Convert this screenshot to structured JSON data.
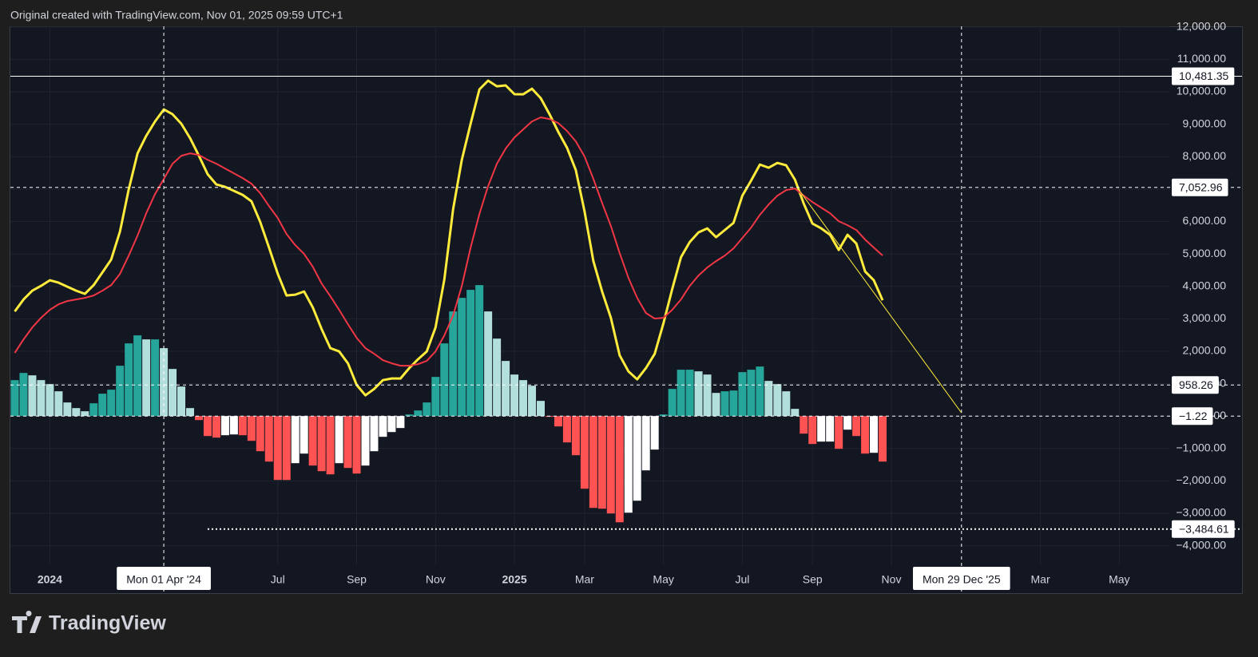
{
  "header": {
    "text": "Original created with TradingView.com, Nov 01, 2025 09:59 UTC+1"
  },
  "footer": {
    "brand": "TradingView"
  },
  "chart_data": {
    "type": "macd",
    "categories": [
      null,
      null,
      null,
      null,
      "2024",
      null,
      null,
      null,
      null,
      null,
      null,
      null,
      null,
      null,
      null,
      null,
      null,
      null,
      null,
      null,
      null,
      null,
      null,
      null,
      null,
      null,
      null,
      null,
      null,
      null,
      "Jul",
      null,
      null,
      null,
      null,
      null,
      null,
      null,
      null,
      "Sep",
      null,
      null,
      null,
      null,
      null,
      null,
      null,
      null,
      "Nov",
      null,
      null,
      null,
      null,
      null,
      null,
      null,
      null,
      "2025",
      null,
      null,
      null,
      null,
      null,
      null,
      null,
      "Mar",
      null,
      null,
      null,
      null,
      null,
      null,
      null,
      null,
      "May",
      null,
      null,
      null,
      null,
      null,
      null,
      null,
      null,
      "Jul",
      null,
      null,
      null,
      null,
      null,
      null,
      null,
      "Sep",
      null,
      null,
      null,
      null,
      null,
      null,
      null,
      null,
      "Nov",
      null,
      null,
      null,
      null,
      null,
      null,
      null,
      null,
      null,
      null,
      null,
      null,
      null,
      null,
      null,
      null,
      "Mar",
      null,
      null,
      null,
      null,
      null,
      null,
      null,
      null,
      "May",
      null,
      null,
      null,
      null,
      null
    ],
    "series": [
      {
        "kind": "histogram",
        "colors": {
          "grow_above": "#26a69a",
          "fall_above": "#b2dfdb",
          "grow_below": "#ffffff",
          "fall_below": "#ff5252"
        },
        "values": [
          1108,
          1330,
          1256,
          1108,
          985,
          764,
          419,
          246,
          148,
          394,
          690,
          813,
          1552,
          2241,
          2488,
          2365,
          2365,
          2094,
          1453,
          911,
          246,
          -123,
          -616,
          -665,
          -591,
          -567,
          -591,
          -764,
          -1084,
          -1404,
          -1970,
          -1972,
          -1453,
          -1158,
          -1527,
          -1700,
          -1798,
          -1453,
          -1601,
          -1773,
          -1527,
          -1084,
          -640,
          -493,
          -369,
          49,
          172,
          419,
          1207,
          2241,
          3227,
          3645,
          3892,
          4039,
          3227,
          2389,
          1700,
          1281,
          1108,
          936,
          468,
          -20,
          -320,
          -813,
          -1207,
          -2241,
          -2833,
          -2857,
          -3005,
          -3276,
          -2980,
          -2611,
          -1675,
          -1034,
          49,
          837,
          1429,
          1430,
          1379,
          1281,
          714,
          764,
          788,
          1355,
          1429,
          1527,
          1084,
          985,
          764,
          222,
          -542,
          -862,
          -788,
          -787,
          -1010,
          -419,
          -616,
          -1158,
          -1133,
          -1404,
          null,
          null,
          null,
          null,
          null,
          null,
          null,
          null,
          null,
          null,
          null,
          null,
          null,
          null,
          null,
          null,
          null,
          null,
          null,
          null,
          null,
          null,
          null,
          null,
          null,
          null,
          null,
          null,
          null,
          null,
          null,
          null
        ]
      },
      {
        "kind": "line",
        "color": "#ffeb3b",
        "values": [
          3227,
          3596,
          3867,
          4015,
          4187,
          4113,
          3990,
          3867,
          3768,
          4039,
          4433,
          4828,
          5690,
          6995,
          8103,
          8645,
          9088,
          9458,
          9310,
          9015,
          8571,
          8029,
          7463,
          7143,
          7069,
          6946,
          6823,
          6626,
          5985,
          5197,
          4384,
          3719,
          3744,
          3842,
          3350,
          2685,
          2094,
          1995,
          1626,
          961,
          640,
          837,
          1108,
          1158,
          1160,
          1478,
          1749,
          1995,
          2734,
          4212,
          6379,
          7906,
          9015,
          10074,
          10345,
          10172,
          10197,
          9926,
          9925,
          10098,
          9803,
          9310,
          8768,
          8276,
          7586,
          6305,
          4778,
          3842,
          3030,
          1872,
          1379,
          1133,
          1478,
          1921,
          2857,
          3916,
          4901,
          5369,
          5665,
          5788,
          5517,
          5739,
          5960,
          6798,
          7266,
          7759,
          7660,
          7808,
          7734,
          7290,
          6552,
          5936,
          5788,
          5591,
          5123,
          5591,
          5320,
          4458,
          4187,
          3571,
          null,
          null,
          null,
          null,
          null,
          null,
          null,
          null,
          null,
          null,
          null,
          null,
          null,
          null,
          null,
          null,
          null,
          null,
          null,
          null,
          null,
          null,
          null,
          null,
          null,
          null,
          null,
          null,
          null,
          null,
          null,
          null
        ]
      },
      {
        "kind": "line",
        "color": "#f23645",
        "values": [
          1946,
          2365,
          2734,
          3030,
          3276,
          3448,
          3547,
          3596,
          3645,
          3719,
          3867,
          4039,
          4384,
          4951,
          5567,
          6256,
          6847,
          7315,
          7783,
          8029,
          8103,
          8054,
          7906,
          7783,
          7635,
          7488,
          7340,
          7167,
          6872,
          6478,
          6108,
          5616,
          5271,
          5000,
          4606,
          4089,
          3695,
          3276,
          2833,
          2414,
          2094,
          1921,
          1724,
          1626,
          1552,
          1553,
          1601,
          1700,
          1995,
          2488,
          3104,
          4015,
          5197,
          6232,
          7094,
          7783,
          8251,
          8596,
          8842,
          9088,
          9212,
          9162,
          9039,
          8793,
          8473,
          8005,
          7315,
          6576,
          5862,
          5025,
          4261,
          3645,
          3177,
          3005,
          3030,
          3276,
          3596,
          4015,
          4335,
          4581,
          4778,
          4951,
          5173,
          5493,
          5813,
          6207,
          6527,
          6798,
          6970,
          7020,
          6798,
          6601,
          6429,
          6256,
          6010,
          5887,
          5739,
          5443,
          5197,
          4951,
          null,
          null,
          null,
          null,
          null,
          null,
          null,
          null,
          null,
          null,
          null,
          null,
          null,
          null,
          null,
          null,
          null,
          null,
          null,
          null,
          null,
          null,
          null,
          null,
          null,
          null,
          null,
          null,
          null,
          null,
          null,
          null
        ]
      }
    ],
    "ylim": [
      -4600,
      12020
    ],
    "yticks": [
      {
        "value": -4000,
        "label": "−4,000.00"
      },
      {
        "value": -3000,
        "label": "−3,000.00"
      },
      {
        "value": -2000,
        "label": "−2,000.00"
      },
      {
        "value": -1000,
        "label": "−1,000.00"
      },
      {
        "value": 0,
        "label": "0.00"
      },
      {
        "value": 1000,
        "label": "1,000.00"
      },
      {
        "value": 2000,
        "label": "2,000.00"
      },
      {
        "value": 3000,
        "label": "3,000.00"
      },
      {
        "value": 4000,
        "label": "4,000.00"
      },
      {
        "value": 5000,
        "label": "5,000.00"
      },
      {
        "value": 6000,
        "label": "6,000.00"
      },
      {
        "value": 7000,
        "label": "7,000.00"
      },
      {
        "value": 8000,
        "label": "8,000.00"
      },
      {
        "value": 9000,
        "label": "9,000.00"
      },
      {
        "value": 10000,
        "label": "10,000.00"
      },
      {
        "value": 11000,
        "label": "11,000.00"
      },
      {
        "value": 12000,
        "label": "12,000.00"
      }
    ],
    "grid": true,
    "price_lines": [
      {
        "value": 10481.35,
        "label": "10,481.35",
        "style": "solid"
      },
      {
        "value": 7052.96,
        "label": "7,052.96",
        "style": "dashed"
      },
      {
        "value": 958.26,
        "label": "958.26",
        "style": "dashed"
      },
      {
        "value": -1.22,
        "label": "−1.22",
        "style": "dashed"
      },
      {
        "value": -3484.61,
        "label": "−3,484.61",
        "style": "dotted",
        "start": 22
      }
    ],
    "vertical_lines": [
      {
        "at": 17,
        "label": "Mon 01 Apr '24"
      },
      {
        "at": 108,
        "label": "Mon 29 Dec '25"
      }
    ],
    "trend_line": {
      "color": "#ffeb3b",
      "points": [
        [
          89.4,
          6995
        ],
        [
          108,
          98
        ]
      ]
    }
  }
}
